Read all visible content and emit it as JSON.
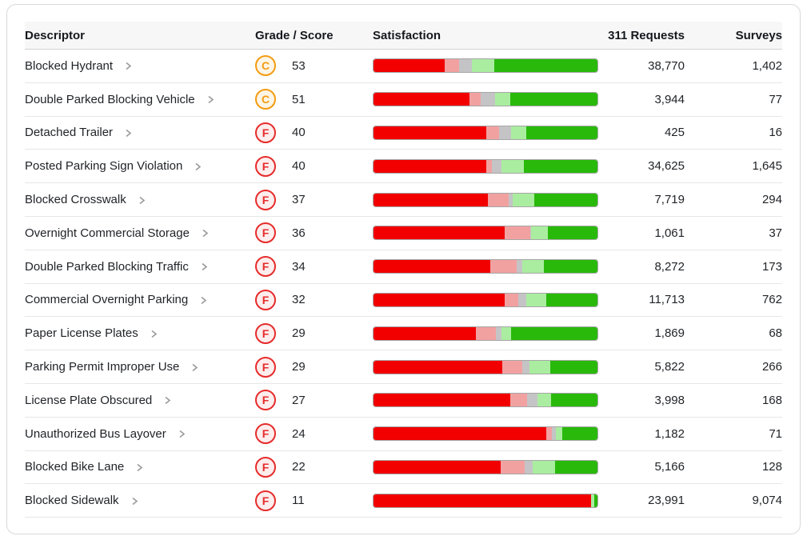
{
  "table": {
    "columns": [
      "Descriptor",
      "Grade / Score",
      "Satisfaction",
      "311 Requests",
      "Surveys"
    ],
    "rows": [
      {
        "descriptor": "Blocked Hydrant",
        "grade": "C",
        "score": "53",
        "requests": "38,770",
        "surveys": "1,402",
        "satisfaction": {
          "very_dissatisfied": 31.7,
          "dissatisfied": 6.4,
          "neutral": 5.7,
          "satisfied": 10.3,
          "very_satisfied": 45.9
        }
      },
      {
        "descriptor": "Double Parked Blocking Vehicle",
        "grade": "C",
        "score": "51",
        "requests": "3,944",
        "surveys": "77",
        "satisfaction": {
          "very_dissatisfied": 42.7,
          "dissatisfied": 5.3,
          "neutral": 6.4,
          "satisfied": 6.8,
          "very_satisfied": 38.8
        }
      },
      {
        "descriptor": "Detached Trailer",
        "grade": "F",
        "score": "40",
        "requests": "425",
        "surveys": "16",
        "satisfaction": {
          "very_dissatisfied": 50.2,
          "dissatisfied": 6.0,
          "neutral": 5.3,
          "satisfied": 6.8,
          "very_satisfied": 31.7
        }
      },
      {
        "descriptor": "Posted Parking Sign Violation",
        "grade": "F",
        "score": "40",
        "requests": "34,625",
        "surveys": "1,645",
        "satisfaction": {
          "very_dissatisfied": 50.4,
          "dissatisfied": 2.6,
          "neutral": 4.2,
          "satisfied": 9.8,
          "very_satisfied": 33.0
        }
      },
      {
        "descriptor": "Blocked Crosswalk",
        "grade": "F",
        "score": "37",
        "requests": "7,719",
        "surveys": "294",
        "satisfaction": {
          "very_dissatisfied": 50.9,
          "dissatisfied": 9.6,
          "neutral": 1.8,
          "satisfied": 9.5,
          "very_satisfied": 28.2
        }
      },
      {
        "descriptor": "Overnight Commercial Storage",
        "grade": "F",
        "score": "36",
        "requests": "1,061",
        "surveys": "37",
        "satisfaction": {
          "very_dissatisfied": 58.7,
          "dissatisfied": 11.4,
          "neutral": 0.4,
          "satisfied": 7.5,
          "very_satisfied": 22.0
        }
      },
      {
        "descriptor": "Double Parked Blocking Traffic",
        "grade": "F",
        "score": "34",
        "requests": "8,272",
        "surveys": "173",
        "satisfaction": {
          "very_dissatisfied": 52.3,
          "dissatisfied": 11.7,
          "neutral": 2.5,
          "satisfied": 9.6,
          "very_satisfied": 23.9
        }
      },
      {
        "descriptor": "Commercial Overnight Parking",
        "grade": "F",
        "score": "32",
        "requests": "11,713",
        "surveys": "762",
        "satisfaction": {
          "very_dissatisfied": 58.7,
          "dissatisfied": 6.0,
          "neutral": 3.6,
          "satisfied": 8.9,
          "very_satisfied": 22.8
        }
      },
      {
        "descriptor": "Paper License Plates",
        "grade": "F",
        "score": "29",
        "requests": "1,869",
        "surveys": "68",
        "satisfaction": {
          "very_dissatisfied": 45.6,
          "dissatisfied": 8.9,
          "neutral": 2.8,
          "satisfied": 4.3,
          "very_satisfied": 38.4
        }
      },
      {
        "descriptor": "Parking Permit Improper Use",
        "grade": "F",
        "score": "29",
        "requests": "5,822",
        "surveys": "266",
        "satisfaction": {
          "very_dissatisfied": 57.6,
          "dissatisfied": 8.9,
          "neutral": 3.3,
          "satisfied": 9.2,
          "very_satisfied": 21.0
        }
      },
      {
        "descriptor": "License Plate Obscured",
        "grade": "F",
        "score": "27",
        "requests": "3,998",
        "surveys": "168",
        "satisfaction": {
          "very_dissatisfied": 61.2,
          "dissatisfied": 7.5,
          "neutral": 4.6,
          "satisfied": 6.0,
          "very_satisfied": 20.7
        }
      },
      {
        "descriptor": "Unauthorized Bus Layover",
        "grade": "F",
        "score": "24",
        "requests": "1,182",
        "surveys": "71",
        "satisfaction": {
          "very_dissatisfied": 77.2,
          "dissatisfied": 2.5,
          "neutral": 1.8,
          "satisfied": 2.8,
          "very_satisfied": 15.7
        }
      },
      {
        "descriptor": "Blocked Bike Lane",
        "grade": "F",
        "score": "22",
        "requests": "5,166",
        "surveys": "128",
        "satisfaction": {
          "very_dissatisfied": 56.9,
          "dissatisfied": 10.7,
          "neutral": 3.6,
          "satisfied": 10.0,
          "very_satisfied": 18.8
        }
      },
      {
        "descriptor": "Blocked Sidewalk",
        "grade": "F",
        "score": "11",
        "requests": "23,991",
        "surveys": "9,074",
        "satisfaction": {
          "very_dissatisfied": 97.0,
          "dissatisfied": 0.0,
          "neutral": 0.0,
          "satisfied": 1.4,
          "very_satisfied": 1.6
        }
      }
    ]
  },
  "colors": {
    "segment_red": "#f20000",
    "segment_pink": "#f2a1a1",
    "segment_gray": "#c4c4c6",
    "segment_light_green": "#aaeda0",
    "segment_green": "#29b90b",
    "grade_c": "#f39c12",
    "grade_c_bg": "#fdf5e6",
    "grade_f": "#e62b2b",
    "grade_f_bg": "#fdeded"
  },
  "chart_data": {
    "type": "bar",
    "subtype": "horizontal-stacked-100pct",
    "title": "Satisfaction by parking violation descriptor (Grade / Score, 311 Requests, Surveys)",
    "categories": [
      "Blocked Hydrant",
      "Double Parked Blocking Vehicle",
      "Detached Trailer",
      "Posted Parking Sign Violation",
      "Blocked Crosswalk",
      "Overnight Commercial Storage",
      "Double Parked Blocking Traffic",
      "Commercial Overnight Parking",
      "Paper License Plates",
      "Parking Permit Improper Use",
      "License Plate Obscured",
      "Unauthorized Bus Layover",
      "Blocked Bike Lane",
      "Blocked Sidewalk"
    ],
    "grades": [
      "C",
      "C",
      "F",
      "F",
      "F",
      "F",
      "F",
      "F",
      "F",
      "F",
      "F",
      "F",
      "F",
      "F"
    ],
    "scores": [
      53,
      51,
      40,
      40,
      37,
      36,
      34,
      32,
      29,
      29,
      27,
      24,
      22,
      11
    ],
    "requests_311": [
      38770,
      3944,
      425,
      34625,
      7719,
      1061,
      8272,
      11713,
      1869,
      5822,
      3998,
      1182,
      5166,
      23991
    ],
    "surveys": [
      1402,
      77,
      16,
      1645,
      294,
      37,
      173,
      762,
      68,
      266,
      168,
      71,
      128,
      9074
    ],
    "series": [
      {
        "name": "Very dissatisfied (red)",
        "color": "#f20000",
        "values": [
          31.7,
          42.7,
          50.2,
          50.4,
          50.9,
          58.7,
          52.3,
          58.7,
          45.6,
          57.6,
          61.2,
          77.2,
          56.9,
          97.0
        ]
      },
      {
        "name": "Dissatisfied (pink)",
        "color": "#f2a1a1",
        "values": [
          6.4,
          5.3,
          6.0,
          2.6,
          9.6,
          11.4,
          11.7,
          6.0,
          8.9,
          8.9,
          7.5,
          2.5,
          10.7,
          0.0
        ]
      },
      {
        "name": "Neutral (gray)",
        "color": "#c4c4c6",
        "values": [
          5.7,
          6.4,
          5.3,
          4.2,
          1.8,
          0.4,
          2.5,
          3.6,
          2.8,
          3.3,
          4.6,
          1.8,
          3.6,
          0.0
        ]
      },
      {
        "name": "Satisfied (light green)",
        "color": "#aaeda0",
        "values": [
          10.3,
          6.8,
          6.8,
          9.8,
          9.5,
          7.5,
          9.6,
          8.9,
          4.3,
          9.2,
          6.0,
          2.8,
          10.0,
          1.4
        ]
      },
      {
        "name": "Very satisfied (green)",
        "color": "#29b90b",
        "values": [
          45.9,
          38.8,
          31.7,
          33.0,
          28.2,
          22.0,
          23.9,
          22.8,
          38.4,
          21.0,
          20.7,
          15.7,
          18.8,
          1.6
        ]
      }
    ],
    "axis_range_pct": [
      0,
      100
    ],
    "grid": false,
    "legend": "none"
  }
}
